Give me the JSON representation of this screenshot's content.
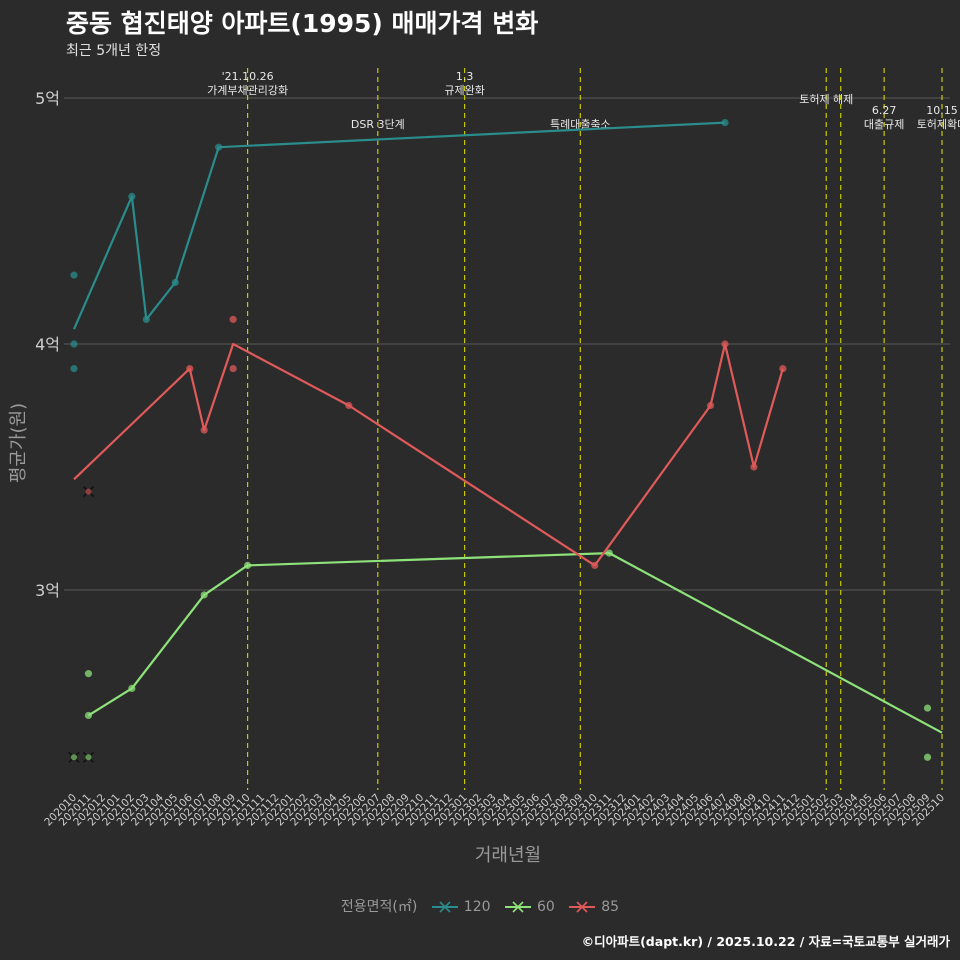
{
  "header": {
    "title": "중동 협진태양 아파트(1995) 매매가격 변화",
    "subtitle": "최근 5개년 한정"
  },
  "footer": {
    "credit": "©디아파트(dapt.kr) / 2025.10.22 / 자료=국토교통부 실거래가"
  },
  "legend": {
    "title": "전용면적(㎡)",
    "items": [
      {
        "label": "120",
        "color": "#2a8c8c"
      },
      {
        "label": "60",
        "color": "#8ee27a"
      },
      {
        "label": "85",
        "color": "#e05a5a"
      }
    ]
  },
  "chart_data": {
    "type": "line",
    "title": "중동 협진태양 아파트(1995) 매매가격 변화",
    "subtitle": "최근 5개년 한정",
    "xlabel": "거래년월",
    "ylabel": "평균가(원)",
    "ylim": [
      2.2,
      5.1
    ],
    "y_ticks": [
      {
        "value": 3,
        "label": "3억"
      },
      {
        "value": 4,
        "label": "4억"
      },
      {
        "value": 5,
        "label": "5억"
      }
    ],
    "x_ticks": [
      "202010",
      "202011",
      "202012",
      "202101",
      "202102",
      "202103",
      "202104",
      "202105",
      "202106",
      "202107",
      "202108",
      "202109",
      "202110",
      "202111",
      "202112",
      "202201",
      "202202",
      "202203",
      "202204",
      "202205",
      "202206",
      "202207",
      "202208",
      "202209",
      "202210",
      "202211",
      "202212",
      "202301",
      "202302",
      "202303",
      "202304",
      "202305",
      "202306",
      "202307",
      "202308",
      "202309",
      "202310",
      "202311",
      "202312",
      "202401",
      "202402",
      "202403",
      "202404",
      "202405",
      "202406",
      "202407",
      "202408",
      "202409",
      "202410",
      "202411",
      "202412",
      "202501",
      "202502",
      "202503",
      "202504",
      "202505",
      "202506",
      "202507",
      "202508",
      "202509",
      "202510"
    ],
    "events": [
      {
        "month": "202110",
        "line1": "'21.10.26",
        "line2": "가계부채관리강화",
        "row": 1
      },
      {
        "month": "202207",
        "line1": "DSR 3단계",
        "line2": "",
        "row": 2
      },
      {
        "month": "202301",
        "line1": "1.3",
        "line2": "규제완화",
        "row": 1
      },
      {
        "month": "202309",
        "line1": "특례대출축소",
        "line2": "",
        "row": 2
      },
      {
        "month": "202502",
        "line1": "토허제 해제",
        "line2": "",
        "row": 1
      },
      {
        "month": "202503",
        "line1": "",
        "line2": "",
        "row": 1
      },
      {
        "month": "202506",
        "line1": "6.27",
        "line2": "대출규제",
        "row": 2
      },
      {
        "month": "202510",
        "line1": "10.15",
        "line2": "토허제확대",
        "row": 2
      }
    ],
    "series": [
      {
        "name": "120",
        "color": "#2a8c8c",
        "line": [
          [
            "202010",
            4.06
          ],
          [
            "202102",
            4.6
          ],
          [
            "202103",
            4.1
          ],
          [
            "202105",
            4.25
          ],
          [
            "202108",
            4.8
          ],
          [
            "202407",
            4.9
          ]
        ],
        "points": [
          [
            "202010",
            4.28
          ],
          [
            "202010",
            4.0
          ],
          [
            "202010",
            3.9
          ],
          [
            "202102",
            4.6
          ],
          [
            "202103",
            4.1
          ],
          [
            "202105",
            4.25
          ],
          [
            "202108",
            4.8
          ],
          [
            "202407",
            4.9
          ]
        ],
        "crosses": []
      },
      {
        "name": "60",
        "color": "#8ee27a",
        "line": [
          [
            "202011",
            2.49
          ],
          [
            "202102",
            2.6
          ],
          [
            "202107",
            2.98
          ],
          [
            "202110",
            3.1
          ],
          [
            "202311",
            3.15
          ],
          [
            "202510",
            2.42
          ]
        ],
        "points": [
          [
            "202011",
            2.66
          ],
          [
            "202011",
            2.49
          ],
          [
            "202102",
            2.6
          ],
          [
            "202107",
            2.98
          ],
          [
            "202110",
            3.1
          ],
          [
            "202311",
            3.15
          ],
          [
            "202509",
            2.52
          ],
          [
            "202509",
            2.32
          ]
        ],
        "crosses": [
          [
            "202010",
            2.32
          ],
          [
            "202011",
            2.32
          ]
        ]
      },
      {
        "name": "85",
        "color": "#e05a5a",
        "line": [
          [
            "202010",
            3.45
          ],
          [
            "202106",
            3.9
          ],
          [
            "202107",
            3.65
          ],
          [
            "202109",
            4.0
          ],
          [
            "202205",
            3.75
          ],
          [
            "202310",
            3.1
          ],
          [
            "202406",
            3.75
          ],
          [
            "202407",
            4.0
          ],
          [
            "202409",
            3.5
          ],
          [
            "202411",
            3.9
          ]
        ],
        "points": [
          [
            "202106",
            3.9
          ],
          [
            "202107",
            3.65
          ],
          [
            "202109",
            4.1
          ],
          [
            "202109",
            3.9
          ],
          [
            "202205",
            3.75
          ],
          [
            "202310",
            3.1
          ],
          [
            "202406",
            3.75
          ],
          [
            "202407",
            4.0
          ],
          [
            "202409",
            3.5
          ],
          [
            "202411",
            3.9
          ]
        ],
        "crosses": [
          [
            "202011",
            3.4
          ]
        ]
      }
    ]
  }
}
